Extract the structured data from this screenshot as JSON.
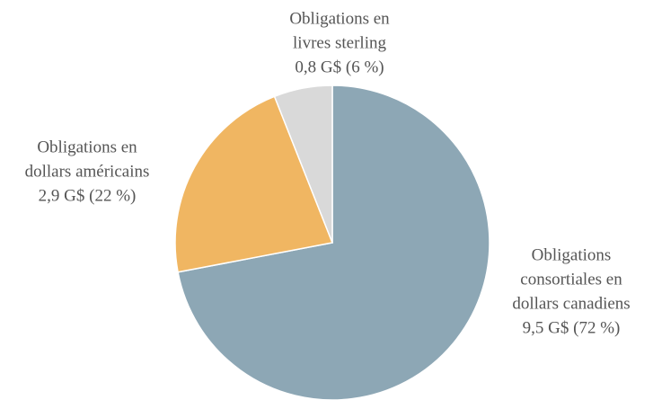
{
  "chart_data": {
    "type": "pie",
    "categories": [
      [
        "Obligations",
        "consortiales en",
        "dollars canadiens"
      ],
      [
        "Obligations en",
        "dollars américains"
      ],
      [
        "Obligations en",
        "livres sterling"
      ]
    ],
    "values": [
      72,
      22,
      6
    ],
    "value_labels": [
      "9,5 G$ (72 %)",
      "2,9 G$ (22 %)",
      "0,8 G$ (6 %)"
    ],
    "colors": [
      "#8da7b5",
      "#f0b662",
      "#d9d9d9"
    ]
  }
}
